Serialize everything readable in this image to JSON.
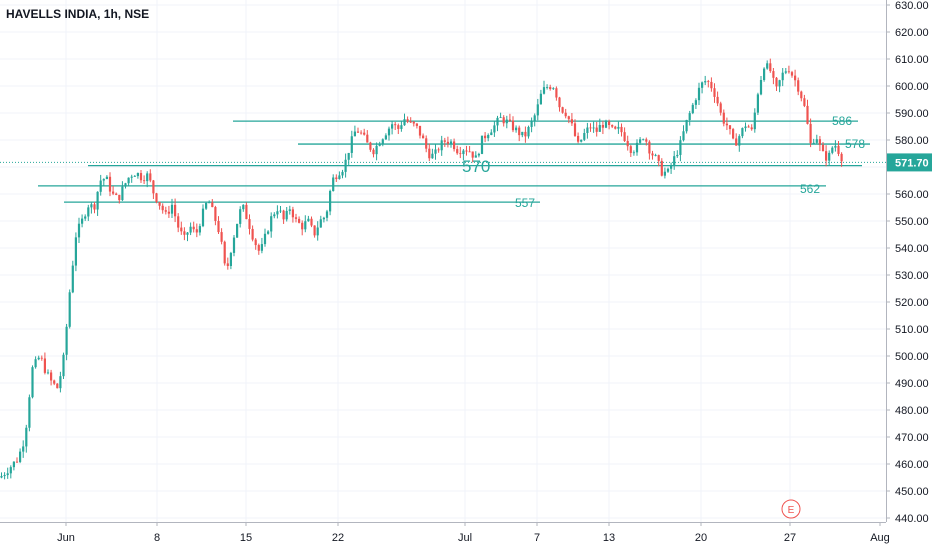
{
  "chart_data": {
    "type": "candlestick",
    "title": "HAVELLS INDIA, 1h, NSE",
    "ylim": [
      440,
      630
    ],
    "y_ticks": [
      630,
      620,
      610,
      600,
      590,
      580,
      570,
      560,
      550,
      540,
      530,
      520,
      510,
      500,
      490,
      480,
      470,
      460,
      450,
      440
    ],
    "x_ticks": [
      "Jun",
      "8",
      "15",
      "22",
      "Jul",
      "7",
      "13",
      "20",
      "27",
      "Aug"
    ],
    "last_price": "571.70",
    "earnings_marker": "E",
    "up_color": "#26a69a",
    "down_color": "#ef5350",
    "level_color": "#26a69a",
    "levels": [
      {
        "label": "586",
        "value": 587
      },
      {
        "label": "578",
        "value": 578.5
      },
      {
        "label": "570",
        "value": 570.5
      },
      {
        "label": "562",
        "value": 563
      },
      {
        "label": "557",
        "value": 557
      }
    ],
    "price_path": [
      [
        0,
        455
      ],
      [
        8,
        458
      ],
      [
        18,
        462
      ],
      [
        25,
        470
      ],
      [
        32,
        495
      ],
      [
        40,
        500
      ],
      [
        46,
        494
      ],
      [
        52,
        490
      ],
      [
        58,
        488
      ],
      [
        64,
        500
      ],
      [
        70,
        525
      ],
      [
        76,
        545
      ],
      [
        82,
        550
      ],
      [
        88,
        556
      ],
      [
        94,
        555
      ],
      [
        100,
        565
      ],
      [
        106,
        566
      ],
      [
        112,
        560
      ],
      [
        118,
        558
      ],
      [
        124,
        563
      ],
      [
        130,
        567
      ],
      [
        136,
        568
      ],
      [
        142,
        566
      ],
      [
        148,
        567
      ],
      [
        154,
        560
      ],
      [
        160,
        556
      ],
      [
        166,
        552
      ],
      [
        172,
        556
      ],
      [
        178,
        548
      ],
      [
        184,
        543
      ],
      [
        190,
        548
      ],
      [
        196,
        545
      ],
      [
        202,
        552
      ],
      [
        208,
        558
      ],
      [
        214,
        552
      ],
      [
        220,
        545
      ],
      [
        226,
        530
      ],
      [
        230,
        538
      ],
      [
        236,
        548
      ],
      [
        242,
        556
      ],
      [
        248,
        550
      ],
      [
        254,
        543
      ],
      [
        260,
        538
      ],
      [
        266,
        545
      ],
      [
        272,
        552
      ],
      [
        278,
        555
      ],
      [
        284,
        550
      ],
      [
        290,
        555
      ],
      [
        296,
        550
      ],
      [
        302,
        548
      ],
      [
        308,
        550
      ],
      [
        314,
        545
      ],
      [
        320,
        550
      ],
      [
        326,
        552
      ],
      [
        332,
        565
      ],
      [
        338,
        568
      ],
      [
        344,
        570
      ],
      [
        350,
        578
      ],
      [
        356,
        584
      ],
      [
        362,
        582
      ],
      [
        368,
        578
      ],
      [
        374,
        576
      ],
      [
        380,
        580
      ],
      [
        386,
        583
      ],
      [
        392,
        586
      ],
      [
        398,
        584
      ],
      [
        404,
        588
      ],
      [
        410,
        586
      ],
      [
        416,
        585
      ],
      [
        422,
        581
      ],
      [
        428,
        575
      ],
      [
        434,
        574
      ],
      [
        440,
        578
      ],
      [
        446,
        580
      ],
      [
        452,
        579
      ],
      [
        458,
        576
      ],
      [
        464,
        577
      ],
      [
        470,
        576
      ],
      [
        476,
        573
      ],
      [
        482,
        580
      ],
      [
        488,
        583
      ],
      [
        494,
        585
      ],
      [
        500,
        588
      ],
      [
        506,
        587
      ],
      [
        512,
        585
      ],
      [
        518,
        583
      ],
      [
        524,
        581
      ],
      [
        530,
        585
      ],
      [
        536,
        590
      ],
      [
        542,
        598
      ],
      [
        548,
        600
      ],
      [
        554,
        600
      ],
      [
        560,
        592
      ],
      [
        566,
        590
      ],
      [
        572,
        585
      ],
      [
        578,
        578
      ],
      [
        584,
        582
      ],
      [
        590,
        585
      ],
      [
        596,
        583
      ],
      [
        602,
        586
      ],
      [
        608,
        585
      ],
      [
        614,
        583
      ],
      [
        620,
        584
      ],
      [
        626,
        580
      ],
      [
        632,
        576
      ],
      [
        638,
        578
      ],
      [
        644,
        582
      ],
      [
        650,
        576
      ],
      [
        656,
        573
      ],
      [
        662,
        568
      ],
      [
        668,
        568
      ],
      [
        674,
        573
      ],
      [
        680,
        578
      ],
      [
        686,
        586
      ],
      [
        692,
        592
      ],
      [
        698,
        598
      ],
      [
        704,
        602
      ],
      [
        710,
        601
      ],
      [
        716,
        596
      ],
      [
        722,
        588
      ],
      [
        728,
        585
      ],
      [
        734,
        578
      ],
      [
        740,
        582
      ],
      [
        746,
        586
      ],
      [
        752,
        583
      ],
      [
        758,
        598
      ],
      [
        764,
        608
      ],
      [
        770,
        606
      ],
      [
        776,
        598
      ],
      [
        782,
        604
      ],
      [
        788,
        607
      ],
      [
        794,
        603
      ],
      [
        800,
        598
      ],
      [
        806,
        590
      ],
      [
        810,
        578
      ],
      [
        816,
        582
      ],
      [
        822,
        575
      ],
      [
        828,
        573
      ],
      [
        834,
        579
      ],
      [
        840,
        575
      ],
      [
        844,
        571.7
      ]
    ]
  }
}
